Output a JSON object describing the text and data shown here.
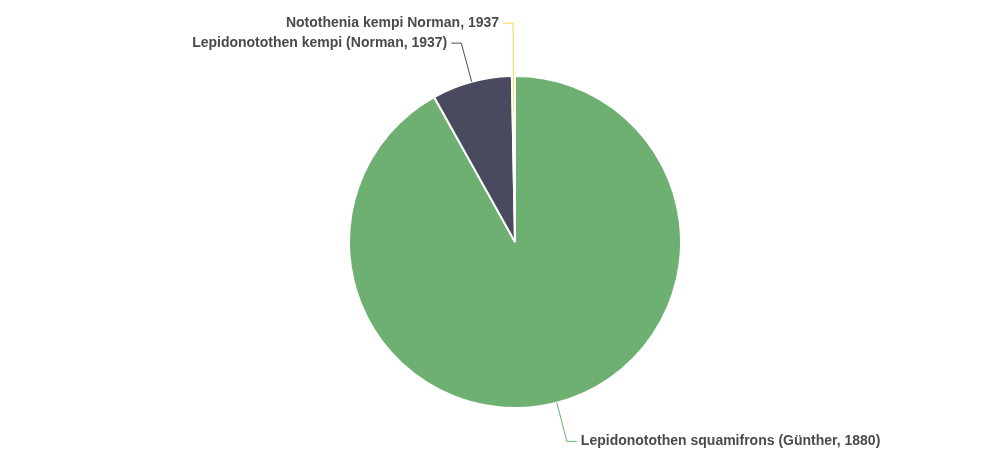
{
  "chart_data": {
    "type": "pie",
    "categories": [
      "Lepidonotothen squamifrons (Günther, 1880)",
      "Lepidonotothen kempi (Norman, 1937)",
      "Notothenia kempi Norman, 1937"
    ],
    "values": [
      91.9,
      7.8,
      0.3
    ],
    "colors": [
      "#6db071",
      "#4a4a5e",
      "#f2d94e"
    ],
    "legend": false
  }
}
